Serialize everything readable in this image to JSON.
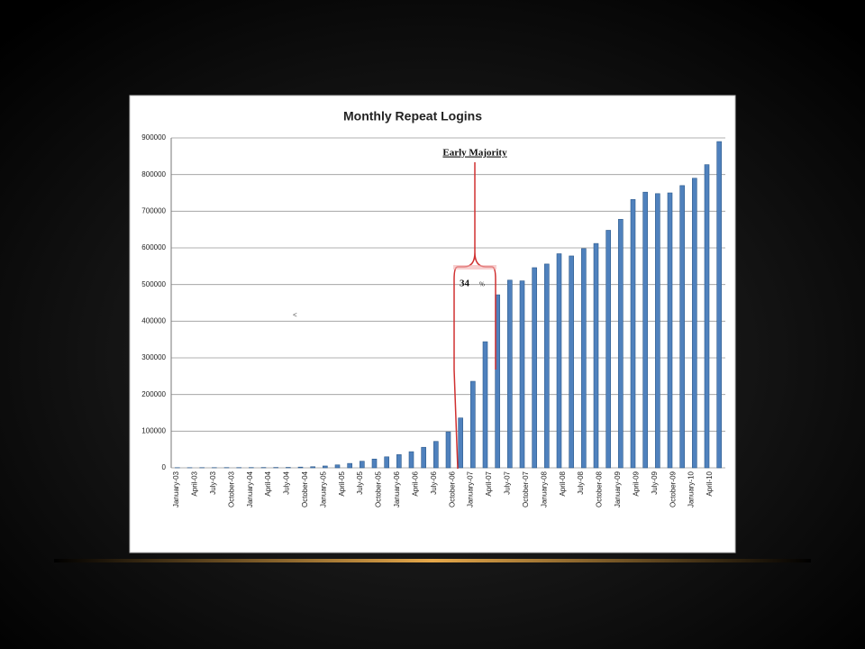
{
  "chart_data": {
    "type": "bar",
    "title": "Monthly Repeat Logins",
    "categories": [
      null,
      null,
      null,
      null,
      null,
      null,
      null,
      null,
      null,
      null,
      null,
      null,
      null,
      null,
      null,
      null,
      null,
      null,
      null,
      null,
      null,
      null,
      null,
      null,
      null,
      null,
      null,
      null,
      null,
      null,
      null,
      null,
      null,
      null,
      null,
      null,
      null,
      null,
      null,
      null,
      null,
      null,
      null,
      null,
      null
    ],
    "values": [
      500,
      500,
      600,
      600,
      700,
      700,
      800,
      900,
      1000,
      1200,
      2000,
      3000,
      5000,
      8000,
      12000,
      18000,
      24000,
      30000,
      36000,
      44000,
      56000,
      72000,
      98000,
      136000,
      236000,
      344000,
      472000,
      512000,
      510000,
      546000,
      556000,
      584000,
      578000,
      598000,
      612000,
      648000,
      678000,
      732000,
      752000,
      748000,
      750000,
      770000,
      790000,
      827000,
      890000
    ],
    "x_labels": [
      "January-03",
      "April-03",
      "July-03",
      "October-03",
      "January-04",
      "April-04",
      "July-04",
      "October-04",
      "January-05",
      "April-05",
      "July-05",
      "October-05",
      "January-06",
      "April-06",
      "July-06",
      "October-06",
      "January-07",
      "April-07",
      "July-07",
      "October-07",
      "January-08",
      "April-08",
      "July-08",
      "October-08",
      "January-09",
      "April-09",
      "July-09",
      "October-09",
      "January-10",
      "April-10"
    ],
    "color": "#4f81bd",
    "ylim": [
      0,
      900000
    ],
    "yticks": [
      0,
      100000,
      200000,
      300000,
      400000,
      500000,
      600000,
      700000,
      800000,
      900000
    ],
    "grid": true,
    "annotations": [
      "Early  Majority",
      "34",
      "%",
      "<"
    ]
  }
}
